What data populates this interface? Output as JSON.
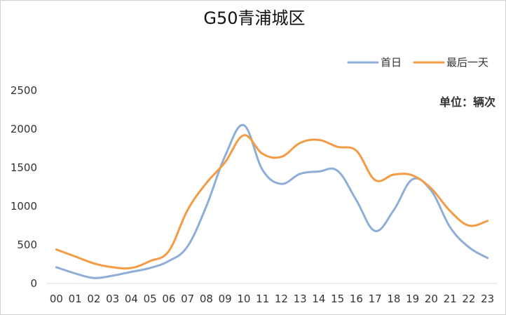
{
  "chart_data": {
    "type": "line",
    "title": "G50青浦城区",
    "unit_label": "单位：辆次",
    "xlabel": "",
    "ylabel": "",
    "categories": [
      "00",
      "01",
      "02",
      "03",
      "04",
      "05",
      "06",
      "07",
      "08",
      "09",
      "10",
      "11",
      "12",
      "13",
      "14",
      "15",
      "16",
      "17",
      "18",
      "19",
      "20",
      "21",
      "22",
      "23"
    ],
    "ylim": [
      0,
      2500
    ],
    "yticks": [
      "0",
      "500",
      "1000",
      "1500",
      "2000",
      "2500"
    ],
    "grid": false,
    "legend_position": "top-right",
    "series": [
      {
        "name": "首日",
        "color": "#8EAED8",
        "values": [
          210,
          130,
          70,
          100,
          150,
          200,
          290,
          480,
          1000,
          1650,
          2050,
          1470,
          1290,
          1420,
          1450,
          1460,
          1080,
          680,
          950,
          1350,
          1200,
          730,
          470,
          330
        ]
      },
      {
        "name": "最后一天",
        "color": "#F39B45",
        "values": [
          440,
          350,
          260,
          210,
          200,
          290,
          420,
          950,
          1300,
          1570,
          1920,
          1680,
          1640,
          1820,
          1860,
          1770,
          1720,
          1340,
          1410,
          1400,
          1230,
          940,
          750,
          810
        ]
      }
    ]
  }
}
